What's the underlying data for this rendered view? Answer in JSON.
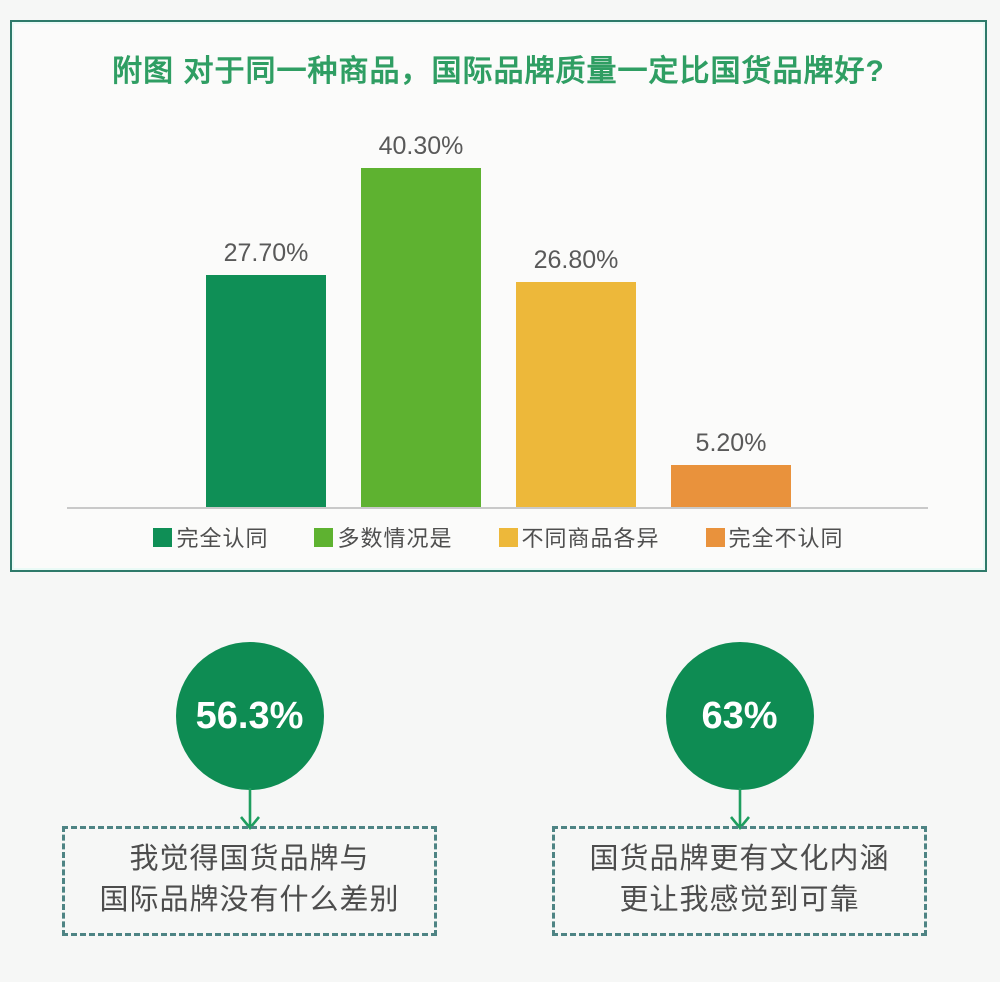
{
  "chart_card": {
    "border_color": "#2e7a6a",
    "title_color": "#2f9e63"
  },
  "chart_data": {
    "type": "bar",
    "title": "附图 对于同一种商品，国际品牌质量一定比国货品牌好?",
    "categories": [
      "完全认同",
      "多数情况是",
      "不同商品各异",
      "完全不认同"
    ],
    "values": [
      27.7,
      40.3,
      26.8,
      5.2
    ],
    "value_labels": [
      "27.70%",
      "40.30%",
      "26.80%",
      "5.20%"
    ],
    "bar_colors": [
      "#0f8f56",
      "#5eb230",
      "#edb83a",
      "#e9923c"
    ],
    "xlabel": "",
    "ylabel": "",
    "ylim": [
      0,
      45
    ],
    "grid": false,
    "legend_position": "bottom"
  },
  "callouts": [
    {
      "percent": "56.3%",
      "circle_color": "#0e8c53",
      "arrow_color": "#1f9e5f",
      "lines": [
        "我觉得国货品牌与",
        "国际品牌没有什么差别"
      ]
    },
    {
      "percent": "63%",
      "circle_color": "#0e8c53",
      "arrow_color": "#1f9e5f",
      "lines": [
        "国货品牌更有文化内涵",
        "更让我感觉到可靠"
      ]
    }
  ]
}
